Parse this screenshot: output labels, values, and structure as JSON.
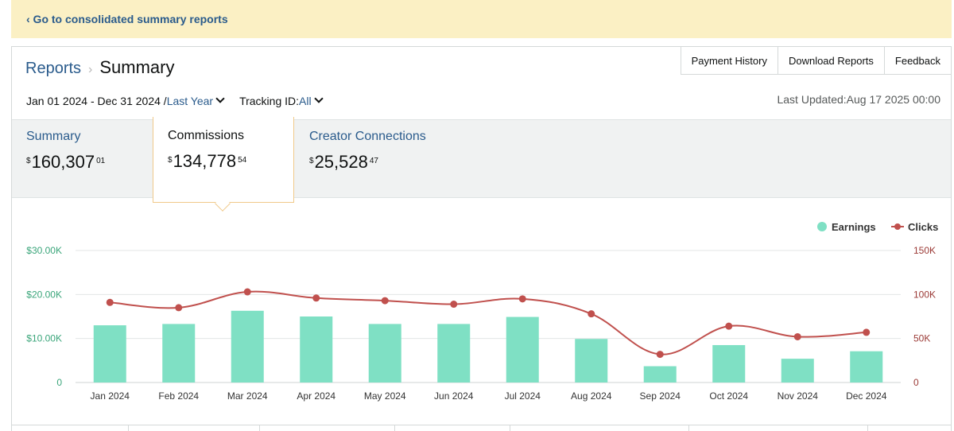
{
  "banner": {
    "link": "‹ Go to consolidated summary reports"
  },
  "breadcrumb": {
    "root": "Reports",
    "separator": "›",
    "current": "Summary"
  },
  "top_buttons": {
    "payment_history": "Payment History",
    "download_reports": "Download Reports",
    "feedback": "Feedback"
  },
  "filters": {
    "date_range": "Jan 01 2024 - Dec 31 2024 /",
    "period": "Last Year",
    "tracking_label": "Tracking ID:",
    "tracking_value": "All"
  },
  "last_updated": "Last Updated:Aug 17 2025 00:00",
  "tabs": [
    {
      "label": "Summary",
      "currency": "$",
      "main": "160,307",
      "cents": "01"
    },
    {
      "label": "Commissions",
      "currency": "$",
      "main": "134,778",
      "cents": "54"
    },
    {
      "label": "Creator Connections",
      "currency": "$",
      "main": "25,528",
      "cents": "47"
    }
  ],
  "chart_data": {
    "type": "bar",
    "categories": [
      "Jan 2024",
      "Feb 2024",
      "Mar 2024",
      "Apr 2024",
      "May 2024",
      "Jun 2024",
      "Jul 2024",
      "Aug 2024",
      "Sep 2024",
      "Oct 2024",
      "Nov 2024",
      "Dec 2024"
    ],
    "series": [
      {
        "name": "Earnings",
        "type": "bar",
        "axis": "left",
        "color": "#7fe0c4",
        "values": [
          13000,
          13300,
          16300,
          15000,
          13300,
          13300,
          14900,
          9900,
          3700,
          8500,
          5400,
          7100
        ]
      },
      {
        "name": "Clicks",
        "type": "line",
        "axis": "right",
        "color": "#c0504d",
        "values": [
          91000,
          85000,
          103000,
          96000,
          93000,
          89000,
          95000,
          78000,
          32000,
          64000,
          52000,
          57000
        ]
      }
    ],
    "left_axis": {
      "ticks": [
        "0",
        "$10.00K",
        "$20.00K",
        "$30.00K"
      ],
      "tick_values": [
        0,
        10000,
        20000,
        30000
      ],
      "range": [
        0,
        30000
      ],
      "color": "#3aa57a"
    },
    "right_axis": {
      "ticks": [
        "0",
        "50K",
        "100K",
        "150K"
      ],
      "tick_values": [
        0,
        50000,
        100000,
        150000
      ],
      "range": [
        0,
        150000
      ],
      "color": "#9b3a36"
    },
    "legend_placement": "top-right",
    "grid": true
  }
}
